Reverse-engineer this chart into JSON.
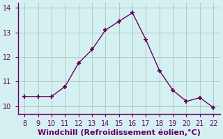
{
  "x": [
    8,
    9,
    10,
    11,
    12,
    13,
    14,
    15,
    16,
    17,
    18,
    19,
    20,
    21,
    22
  ],
  "y": [
    10.4,
    10.4,
    10.4,
    10.8,
    11.75,
    12.3,
    13.1,
    13.45,
    13.8,
    12.7,
    11.45,
    10.65,
    10.2,
    10.35,
    9.95
  ],
  "line_color": "#660066",
  "marker": "+",
  "marker_size": 5,
  "marker_linewidth": 1.5,
  "bg_color": "#d5f0f0",
  "grid_color": "#b0c8c8",
  "xlabel": "Windchill (Refroidissement éolien,°C)",
  "xlabel_color": "#660066",
  "xlabel_fontsize": 8,
  "tick_color": "#660066",
  "tick_fontsize": 7,
  "xlim": [
    7.5,
    22.5
  ],
  "ylim": [
    9.7,
    14.2
  ],
  "xticks": [
    8,
    9,
    10,
    11,
    12,
    13,
    14,
    15,
    16,
    17,
    18,
    19,
    20,
    21,
    22
  ],
  "yticks": [
    10,
    11,
    12,
    13,
    14
  ],
  "spine_color": "#660066",
  "line_width": 1.0
}
